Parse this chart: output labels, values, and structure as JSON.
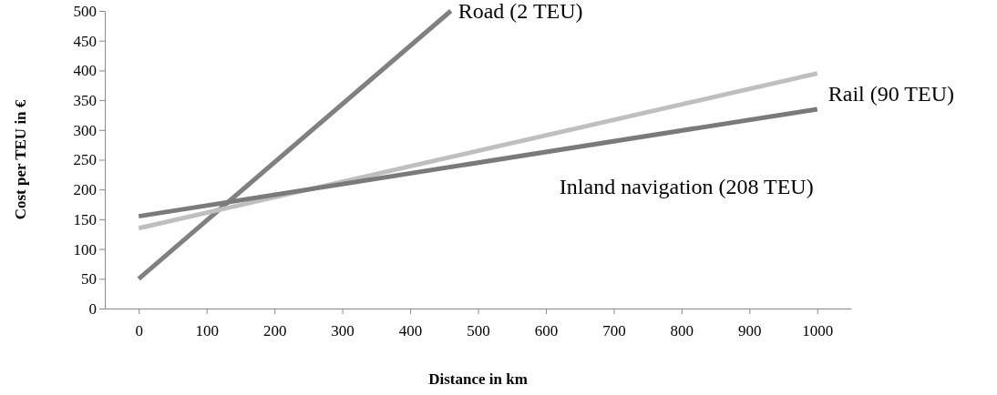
{
  "chart_data": {
    "type": "line",
    "xlabel": "Distance in km",
    "ylabel": "Cost per TEU in €",
    "xlim": [
      -50,
      1050
    ],
    "xticks": [
      0,
      100,
      200,
      300,
      400,
      500,
      600,
      700,
      800,
      900,
      1000
    ],
    "ylim": [
      0,
      500
    ],
    "yticks": [
      0,
      50,
      100,
      150,
      200,
      250,
      300,
      350,
      400,
      450,
      500
    ],
    "grid": false,
    "marker": "none",
    "line_style": "solid",
    "series": [
      {
        "name": "Road (2 TEU)",
        "color": "#808080",
        "x": [
          0,
          460
        ],
        "values": [
          50,
          500
        ]
      },
      {
        "name": "Rail (90 TEU)",
        "color": "#bfbfbf",
        "x": [
          0,
          1000
        ],
        "values": [
          135,
          395
        ]
      },
      {
        "name": "Inland navigation (208 TEU)",
        "color": "#7a7a7a",
        "x": [
          0,
          1000
        ],
        "values": [
          155,
          335
        ]
      }
    ]
  }
}
